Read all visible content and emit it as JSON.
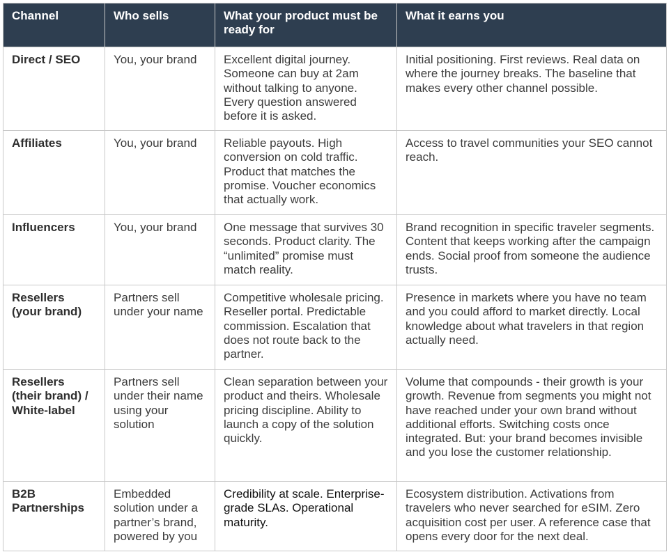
{
  "table": {
    "header_bg": "#2e3e50",
    "headers": [
      "Channel",
      "Who sells",
      "What your product must be ready for",
      "What it earns you"
    ],
    "rows": [
      {
        "channel": "Direct / SEO",
        "who_sells": "You, your brand",
        "ready_for": "Excellent digital journey. Someone can buy at 2am without talking to anyone. Every question answered before it is asked.",
        "earns": "Initial positioning. First reviews. Real data on where the journey breaks. The baseline that makes every other channel possible."
      },
      {
        "channel": "Affiliates",
        "who_sells": "You, your brand",
        "ready_for": "Reliable payouts. High conversion on cold traffic. Product that matches the promise. Voucher economics that actually work.",
        "earns": "Access to travel communities your SEO cannot reach."
      },
      {
        "channel": "Influencers",
        "who_sells": "You, your brand",
        "ready_for": "One message that survives 30 seconds. Product clarity. The “unlimited” promise must match reality.",
        "earns": "Brand recognition in specific traveler segments. Content that keeps working after the campaign ends. Social proof from someone the audience trusts."
      },
      {
        "channel": "Resellers (your brand)",
        "who_sells": "Partners sell under your name",
        "ready_for": "Competitive wholesale pricing. Reseller portal. Predictable commission. Escalation that does not route back to the partner.",
        "earns": "Presence in markets where you have no team and you could afford to market directly. Local knowledge about what travelers in that region actually need."
      },
      {
        "channel": "Resellers (their brand) / White-label",
        "who_sells": "Partners sell under their name using your solution",
        "ready_for": "Clean separation between your product and theirs. Wholesale pricing discipline. Ability to launch a copy of the solution quickly.",
        "earns": "Volume that compounds - their growth is your growth. Revenue from segments you might not have reached under your own brand without additional efforts. Switching costs once integrated. But: your brand becomes invisible and you lose the customer relationship."
      },
      {
        "channel": "B2B Partnerships",
        "who_sells": "Embedded solution under a partner’s brand, powered by you",
        "ready_for": "Credibility at scale. Enterprise-grade SLAs. Operational maturity.",
        "earns": "Ecosystem distribution. Activations from travelers who never searched for eSIM. Zero acquisition cost per user. A reference case that opens every door for the next deal."
      }
    ]
  }
}
